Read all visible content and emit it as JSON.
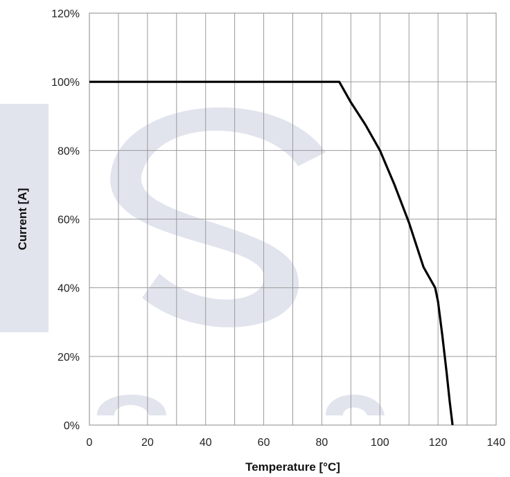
{
  "chart_data": {
    "type": "line",
    "xlabel": "Temperature [°C]",
    "ylabel": "Current [A]",
    "xlim": [
      0,
      140
    ],
    "ylim": [
      0,
      120
    ],
    "x_ticks": [
      0,
      20,
      40,
      60,
      80,
      100,
      120,
      140
    ],
    "x_tick_labels": [
      "0",
      "20",
      "40",
      "60",
      "80",
      "100",
      "120",
      "140"
    ],
    "y_ticks": [
      0,
      20,
      40,
      60,
      80,
      100,
      120
    ],
    "y_tick_labels": [
      "0%",
      "20%",
      "40%",
      "60%",
      "80%",
      "100%",
      "120%"
    ],
    "grid": true,
    "minor_x_grid_step": 10,
    "series": [
      {
        "color": "#000000",
        "points": [
          {
            "x": 0,
            "y": 100
          },
          {
            "x": 85,
            "y": 100
          },
          {
            "x": 86,
            "y": 100
          },
          {
            "x": 90,
            "y": 94
          },
          {
            "x": 95,
            "y": 87.5
          },
          {
            "x": 100,
            "y": 80
          },
          {
            "x": 105,
            "y": 70
          },
          {
            "x": 110,
            "y": 59
          },
          {
            "x": 115,
            "y": 46
          },
          {
            "x": 119,
            "y": 40
          },
          {
            "x": 120,
            "y": 36
          },
          {
            "x": 121.5,
            "y": 26
          },
          {
            "x": 123,
            "y": 15
          },
          {
            "x": 124,
            "y": 7
          },
          {
            "x": 125,
            "y": 0
          }
        ]
      }
    ],
    "watermark_colors": "#c9cdde"
  }
}
